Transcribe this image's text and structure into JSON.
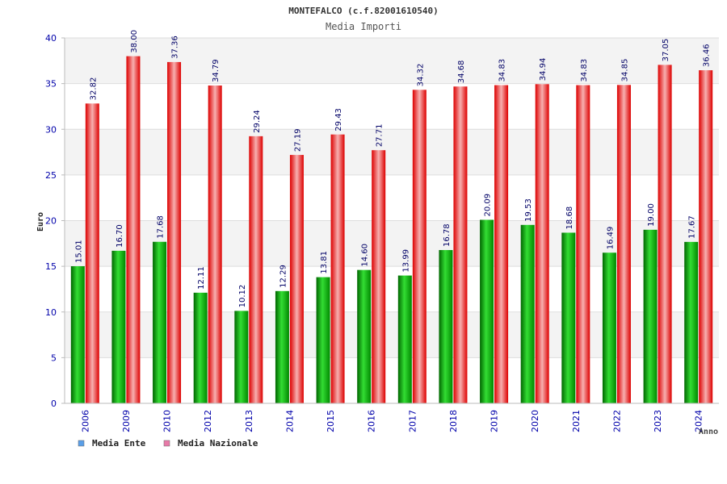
{
  "chart_data": {
    "type": "bar",
    "title": "MONTEFALCO (c.f.82001610540)",
    "subtitle": "Media Importi",
    "xlabel": "Anno",
    "ylabel": "Euro",
    "ylim": [
      0,
      40
    ],
    "yticks": [
      "0",
      "5",
      "10",
      "15",
      "20",
      "25",
      "30",
      "35",
      "40"
    ],
    "grid": true,
    "legend_position": "bottom-left",
    "categories": [
      "2006",
      "2009",
      "2010",
      "2012",
      "2013",
      "2014",
      "2015",
      "2016",
      "2017",
      "2018",
      "2019",
      "2020",
      "2021",
      "2022",
      "2023",
      "2024"
    ],
    "series": [
      {
        "name": "Media Ente",
        "color": "#00aa00",
        "values": [
          15.01,
          16.7,
          17.68,
          12.11,
          10.12,
          12.29,
          13.81,
          14.6,
          13.99,
          16.78,
          20.09,
          19.53,
          18.68,
          16.49,
          19.0,
          17.67
        ],
        "labels": [
          "15.01",
          "16.70",
          "17.68",
          "12.11",
          "10.12",
          "12.29",
          "13.81",
          "14.60",
          "13.99",
          "16.78",
          "20.09",
          "19.53",
          "18.68",
          "16.49",
          "19.00",
          "17.67"
        ]
      },
      {
        "name": "Media Nazionale",
        "color": "#ee0000",
        "values": [
          32.82,
          38.0,
          37.36,
          34.79,
          29.24,
          27.19,
          29.43,
          27.71,
          34.32,
          34.68,
          34.83,
          34.94,
          34.83,
          34.85,
          37.05,
          36.46
        ],
        "labels": [
          "32.82",
          "38.00",
          "37.36",
          "34.79",
          "29.24",
          "27.19",
          "29.43",
          "27.71",
          "34.32",
          "34.68",
          "34.83",
          "34.94",
          "34.83",
          "34.85",
          "37.05",
          "36.46"
        ]
      }
    ],
    "legend": [
      {
        "label": "Media Ente",
        "swatch_color": "#5a9fe8"
      },
      {
        "label": "Media Nazionale",
        "swatch_color": "#e87aa8"
      }
    ]
  }
}
